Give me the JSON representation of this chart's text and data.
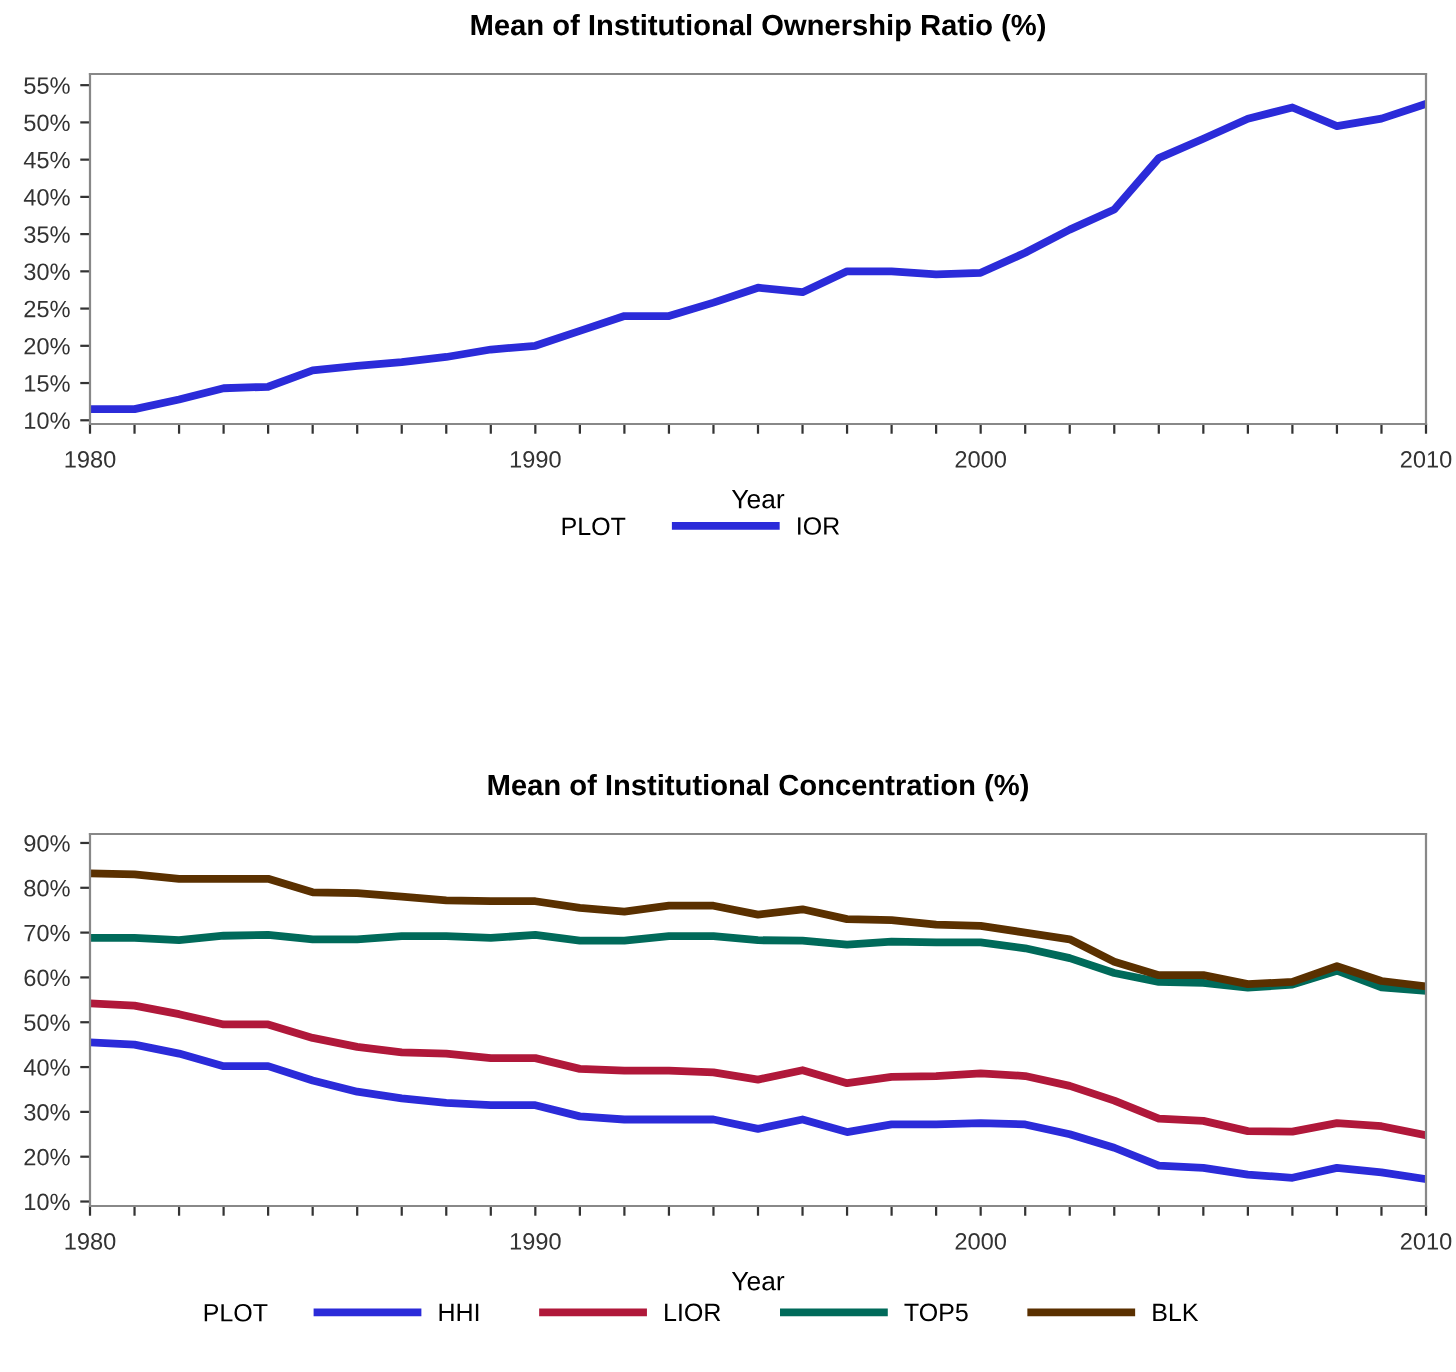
{
  "chart_data": [
    {
      "type": "line",
      "title": "Mean of Institutional Ownership Ratio (%)",
      "xlabel": "Year",
      "legend_title": "PLOT",
      "legend": "bottom",
      "grid": false,
      "x": [
        1980,
        1981,
        1982,
        1983,
        1984,
        1985,
        1986,
        1987,
        1988,
        1989,
        1990,
        1991,
        1992,
        1993,
        1994,
        1995,
        1996,
        1997,
        1998,
        1999,
        2000,
        2001,
        2002,
        2003,
        2004,
        2005,
        2006,
        2007,
        2008,
        2009,
        2010
      ],
      "xlim": [
        1980,
        2010
      ],
      "xticks": [
        1980,
        {
          "value": 1981,
          "label": null
        },
        {
          "value": 1982,
          "label": null
        },
        {
          "value": 1983,
          "label": null
        },
        {
          "value": 1984,
          "label": null
        },
        {
          "value": 1985,
          "label": null
        },
        {
          "value": 1986,
          "label": null
        },
        {
          "value": 1987,
          "label": null
        },
        {
          "value": 1988,
          "label": null
        },
        {
          "value": 1989,
          "label": null
        },
        1990,
        {
          "value": 1991,
          "label": null
        },
        {
          "value": 1992,
          "label": null
        },
        {
          "value": 1993,
          "label": null
        },
        {
          "value": 1994,
          "label": null
        },
        {
          "value": 1995,
          "label": null
        },
        {
          "value": 1996,
          "label": null
        },
        {
          "value": 1997,
          "label": null
        },
        {
          "value": 1998,
          "label": null
        },
        {
          "value": 1999,
          "label": null
        },
        2000,
        {
          "value": 2001,
          "label": null
        },
        {
          "value": 2002,
          "label": null
        },
        {
          "value": 2003,
          "label": null
        },
        {
          "value": 2004,
          "label": null
        },
        {
          "value": 2005,
          "label": null
        },
        {
          "value": 2006,
          "label": null
        },
        {
          "value": 2007,
          "label": null
        },
        {
          "value": 2008,
          "label": null
        },
        {
          "value": 2009,
          "label": null
        },
        2010
      ],
      "ylim": [
        9.5,
        56.5
      ],
      "yticks": [
        {
          "value": 10,
          "label": "10%"
        },
        {
          "value": 15,
          "label": "15%"
        },
        {
          "value": 20,
          "label": "20%"
        },
        {
          "value": 25,
          "label": "25%"
        },
        {
          "value": 30,
          "label": "30%"
        },
        {
          "value": 35,
          "label": "35%"
        },
        {
          "value": 40,
          "label": "40%"
        },
        {
          "value": 45,
          "label": "45%"
        },
        {
          "value": 50,
          "label": "50%"
        },
        {
          "value": 55,
          "label": "55%"
        }
      ],
      "series": [
        {
          "name": "IOR",
          "color": "#2b2bd9",
          "values": [
            11.5,
            11.5,
            12.8,
            14.3,
            14.5,
            16.7,
            17.3,
            17.8,
            18.5,
            19.5,
            20,
            22,
            24,
            24,
            25.8,
            27.8,
            27.2,
            30,
            30,
            29.6,
            29.8,
            32.5,
            35.6,
            38.3,
            45.2,
            47.8,
            50.5,
            52,
            49.5,
            50.5,
            52.5
          ]
        }
      ]
    },
    {
      "type": "line",
      "title": "Mean of Institutional Concentration (%)",
      "xlabel": "Year",
      "legend_title": "PLOT",
      "legend": "bottom",
      "grid": false,
      "x": [
        1980,
        1981,
        1982,
        1983,
        1984,
        1985,
        1986,
        1987,
        1988,
        1989,
        1990,
        1991,
        1992,
        1993,
        1994,
        1995,
        1996,
        1997,
        1998,
        1999,
        2000,
        2001,
        2002,
        2003,
        2004,
        2005,
        2006,
        2007,
        2008,
        2009,
        2010
      ],
      "xlim": [
        1980,
        2010
      ],
      "xticks": [
        1980,
        {
          "value": 1981,
          "label": null
        },
        {
          "value": 1982,
          "label": null
        },
        {
          "value": 1983,
          "label": null
        },
        {
          "value": 1984,
          "label": null
        },
        {
          "value": 1985,
          "label": null
        },
        {
          "value": 1986,
          "label": null
        },
        {
          "value": 1987,
          "label": null
        },
        {
          "value": 1988,
          "label": null
        },
        {
          "value": 1989,
          "label": null
        },
        1990,
        {
          "value": 1991,
          "label": null
        },
        {
          "value": 1992,
          "label": null
        },
        {
          "value": 1993,
          "label": null
        },
        {
          "value": 1994,
          "label": null
        },
        {
          "value": 1995,
          "label": null
        },
        {
          "value": 1996,
          "label": null
        },
        {
          "value": 1997,
          "label": null
        },
        {
          "value": 1998,
          "label": null
        },
        {
          "value": 1999,
          "label": null
        },
        2000,
        {
          "value": 2001,
          "label": null
        },
        {
          "value": 2002,
          "label": null
        },
        {
          "value": 2003,
          "label": null
        },
        {
          "value": 2004,
          "label": null
        },
        {
          "value": 2005,
          "label": null
        },
        {
          "value": 2006,
          "label": null
        },
        {
          "value": 2007,
          "label": null
        },
        {
          "value": 2008,
          "label": null
        },
        {
          "value": 2009,
          "label": null
        },
        2010
      ],
      "ylim": [
        9,
        92
      ],
      "yticks": [
        {
          "value": 10,
          "label": "10%"
        },
        {
          "value": 20,
          "label": "20%"
        },
        {
          "value": 30,
          "label": "30%"
        },
        {
          "value": 40,
          "label": "40%"
        },
        {
          "value": 50,
          "label": "50%"
        },
        {
          "value": 60,
          "label": "60%"
        },
        {
          "value": 70,
          "label": "70%"
        },
        {
          "value": 80,
          "label": "80%"
        },
        {
          "value": 90,
          "label": "90%"
        }
      ],
      "series": [
        {
          "name": "HHI",
          "color": "#2b2bd9",
          "values": [
            45.5,
            45,
            43,
            40.2,
            40.2,
            37,
            34.5,
            33,
            32,
            31.5,
            31.5,
            29,
            28.3,
            28.3,
            28.3,
            26.2,
            28.3,
            25.5,
            27.2,
            27.2,
            27.5,
            27.2,
            25,
            22,
            18,
            17.5,
            16,
            15.3,
            17.5,
            16.5,
            15
          ]
        },
        {
          "name": "LIOR",
          "color": "#b0183a",
          "values": [
            54.2,
            53.7,
            51.8,
            49.5,
            49.5,
            46.5,
            44.5,
            43.3,
            43,
            42,
            42,
            39.6,
            39.2,
            39.2,
            38.8,
            37.2,
            39.3,
            36.4,
            37.8,
            38,
            38.6,
            38,
            35.8,
            32.5,
            28.5,
            28,
            25.7,
            25.6,
            27.5,
            26.8,
            24.8
          ]
        },
        {
          "name": "TOP5",
          "color": "#006a5a",
          "values": [
            68.8,
            68.8,
            68.3,
            69.3,
            69.5,
            68.5,
            68.5,
            69.2,
            69.2,
            68.8,
            69.5,
            68.2,
            68.2,
            69.2,
            69.2,
            68.3,
            68.2,
            67.3,
            68,
            67.8,
            67.8,
            66.5,
            64.3,
            61,
            59,
            58.8,
            57.7,
            58.4,
            61.5,
            57.8,
            57
          ]
        },
        {
          "name": "BLK",
          "color": "#5a3000",
          "values": [
            83.2,
            83,
            82,
            82,
            82,
            79,
            78.8,
            78,
            77.2,
            77,
            77,
            75.5,
            74.7,
            76,
            76,
            74,
            75.2,
            73,
            72.8,
            71.8,
            71.5,
            70,
            68.5,
            63.5,
            60.5,
            60.5,
            58.5,
            59,
            62.5,
            59.2,
            58
          ]
        }
      ]
    }
  ]
}
